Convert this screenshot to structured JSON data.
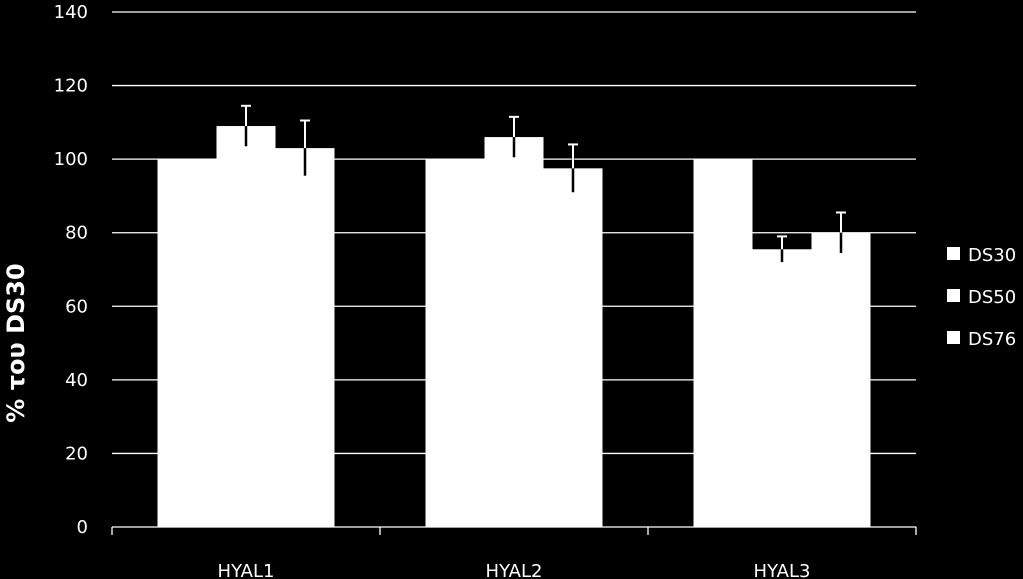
{
  "chart_data": {
    "type": "bar",
    "ylabel": "% του DS30",
    "xlabel": "",
    "ylim": [
      0,
      140
    ],
    "yticks": [
      0,
      20,
      40,
      60,
      80,
      100,
      120,
      140
    ],
    "grid": true,
    "legend_position": "right",
    "categories": [
      "HYAL1",
      "HYAL2",
      "HYAL3"
    ],
    "series": [
      {
        "name": "DS30",
        "values": [
          100,
          100,
          100
        ],
        "errors": [
          0,
          0,
          0
        ]
      },
      {
        "name": "DS50",
        "values": [
          109,
          106,
          75.5
        ],
        "errors": [
          5.5,
          5.5,
          3.5
        ]
      },
      {
        "name": "DS76",
        "values": [
          103,
          97.5,
          80
        ],
        "errors": [
          7.5,
          6.5,
          5.5
        ]
      }
    ],
    "colors": {
      "background": "#000000",
      "bar": "#ffffff",
      "grid": "#ffffff",
      "text": "#ffffff"
    }
  }
}
